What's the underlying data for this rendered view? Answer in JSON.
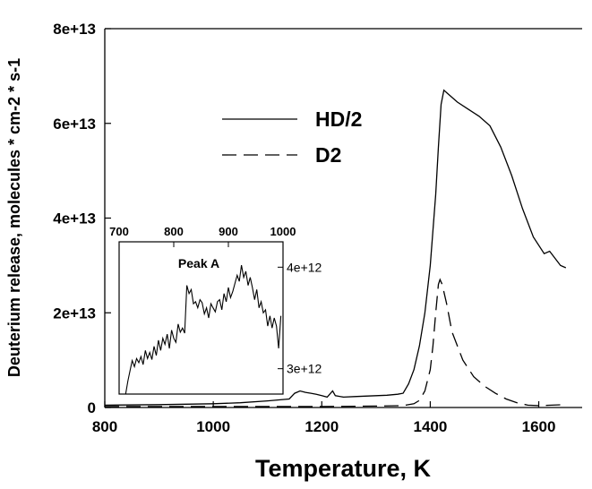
{
  "chart_data": [
    {
      "type": "line",
      "xlabel": "Temperature, K",
      "ylabel": "Deuterium release, molecules * cm-2 * s-1",
      "xlim": [
        800,
        1680
      ],
      "ylim": [
        0,
        80000000000000.0
      ],
      "x_ticks": [
        800,
        1000,
        1200,
        1400,
        1600
      ],
      "x_tick_labels": [
        "800",
        "1000",
        "1200",
        "1400",
        "1600"
      ],
      "y_ticks": [
        0,
        20000000000000.0,
        40000000000000.0,
        60000000000000.0,
        80000000000000.0
      ],
      "y_tick_labels": [
        "0",
        "2e+13",
        "4e+13",
        "6e+13",
        "8e+13"
      ],
      "grid": false,
      "legend_position": "top-center",
      "series": [
        {
          "name": "HD/2",
          "style": "solid",
          "color": "#000000",
          "points": [
            [
              800,
              500000000000.0
            ],
            [
              900,
              600000000000.0
            ],
            [
              1000,
              800000000000.0
            ],
            [
              1050,
              1000000000000.0
            ],
            [
              1100,
              1400000000000.0
            ],
            [
              1140,
              1800000000000.0
            ],
            [
              1150,
              3000000000000.0
            ],
            [
              1160,
              3500000000000.0
            ],
            [
              1170,
              3200000000000.0
            ],
            [
              1180,
              3000000000000.0
            ],
            [
              1190,
              2800000000000.0
            ],
            [
              1200,
              2500000000000.0
            ],
            [
              1210,
              2200000000000.0
            ],
            [
              1220,
              3500000000000.0
            ],
            [
              1225,
              2500000000000.0
            ],
            [
              1240,
              2200000000000.0
            ],
            [
              1260,
              2300000000000.0
            ],
            [
              1280,
              2400000000000.0
            ],
            [
              1300,
              2500000000000.0
            ],
            [
              1320,
              2600000000000.0
            ],
            [
              1340,
              2800000000000.0
            ],
            [
              1350,
              3000000000000.0
            ],
            [
              1360,
              5000000000000.0
            ],
            [
              1370,
              8000000000000.0
            ],
            [
              1380,
              13000000000000.0
            ],
            [
              1390,
              20000000000000.0
            ],
            [
              1400,
              30000000000000.0
            ],
            [
              1410,
              45000000000000.0
            ],
            [
              1415,
              55000000000000.0
            ],
            [
              1420,
              64000000000000.0
            ],
            [
              1425,
              67000000000000.0
            ],
            [
              1430,
              66500000000000.0
            ],
            [
              1450,
              64500000000000.0
            ],
            [
              1470,
              63000000000000.0
            ],
            [
              1490,
              61500000000000.0
            ],
            [
              1510,
              59500000000000.0
            ],
            [
              1530,
              55000000000000.0
            ],
            [
              1550,
              49000000000000.0
            ],
            [
              1570,
              42000000000000.0
            ],
            [
              1590,
              36000000000000.0
            ],
            [
              1610,
              32500000000000.0
            ],
            [
              1620,
              33000000000000.0
            ],
            [
              1630,
              31500000000000.0
            ],
            [
              1640,
              30000000000000.0
            ],
            [
              1650,
              29500000000000.0
            ]
          ]
        },
        {
          "name": "D2",
          "style": "dashed",
          "color": "#000000",
          "points": [
            [
              800,
              200000000000.0
            ],
            [
              1000,
              200000000000.0
            ],
            [
              1200,
              200000000000.0
            ],
            [
              1300,
              300000000000.0
            ],
            [
              1350,
              400000000000.0
            ],
            [
              1370,
              800000000000.0
            ],
            [
              1380,
              1500000000000.0
            ],
            [
              1390,
              3500000000000.0
            ],
            [
              1400,
              8000000000000.0
            ],
            [
              1405,
              13000000000000.0
            ],
            [
              1410,
              20000000000000.0
            ],
            [
              1415,
              26000000000000.0
            ],
            [
              1418,
              27000000000000.0
            ],
            [
              1422,
              26000000000000.0
            ],
            [
              1430,
              22000000000000.0
            ],
            [
              1440,
              16000000000000.0
            ],
            [
              1460,
              10000000000000.0
            ],
            [
              1480,
              6500000000000.0
            ],
            [
              1500,
              4500000000000.0
            ],
            [
              1520,
              3000000000000.0
            ],
            [
              1540,
              1800000000000.0
            ],
            [
              1560,
              1000000000000.0
            ],
            [
              1580,
              500000000000.0
            ],
            [
              1600,
              400000000000.0
            ],
            [
              1650,
              600000000000.0
            ]
          ]
        }
      ]
    },
    {
      "type": "line",
      "title": "Peak A",
      "xlim": [
        700,
        1000
      ],
      "ylim": [
        2750000000000.0,
        4250000000000.0
      ],
      "x_ticks": [
        700,
        800,
        900,
        1000
      ],
      "x_tick_labels": [
        "700",
        "800",
        "900",
        "1000"
      ],
      "x_axis_position": "top",
      "y_ticks": [
        3000000000000.0,
        4000000000000.0
      ],
      "y_tick_labels": [
        "3e+12",
        "4e+12"
      ],
      "y_axis_position": "right",
      "series": [
        {
          "style": "solid",
          "color": "#000000",
          "points": [
            [
              712,
              2750000000000.0
            ],
            [
              716,
              2880000000000.0
            ],
            [
              720,
              2980000000000.0
            ],
            [
              724,
              3080000000000.0
            ],
            [
              728,
              3020000000000.0
            ],
            [
              732,
              3100000000000.0
            ],
            [
              736,
              3060000000000.0
            ],
            [
              740,
              3120000000000.0
            ],
            [
              744,
              3040000000000.0
            ],
            [
              748,
              3180000000000.0
            ],
            [
              752,
              3100000000000.0
            ],
            [
              756,
              3160000000000.0
            ],
            [
              760,
              3090000000000.0
            ],
            [
              764,
              3220000000000.0
            ],
            [
              768,
              3130000000000.0
            ],
            [
              772,
              3280000000000.0
            ],
            [
              776,
              3180000000000.0
            ],
            [
              780,
              3300000000000.0
            ],
            [
              784,
              3240000000000.0
            ],
            [
              788,
              3340000000000.0
            ],
            [
              792,
              3200000000000.0
            ],
            [
              796,
              3380000000000.0
            ],
            [
              800,
              3300000000000.0
            ],
            [
              804,
              3260000000000.0
            ],
            [
              808,
              3440000000000.0
            ],
            [
              812,
              3360000000000.0
            ],
            [
              816,
              3400000000000.0
            ],
            [
              820,
              3350000000000.0
            ],
            [
              824,
              3820000000000.0
            ],
            [
              828,
              3740000000000.0
            ],
            [
              832,
              3780000000000.0
            ],
            [
              836,
              3640000000000.0
            ],
            [
              840,
              3660000000000.0
            ],
            [
              844,
              3600000000000.0
            ],
            [
              848,
              3680000000000.0
            ],
            [
              852,
              3650000000000.0
            ],
            [
              856,
              3540000000000.0
            ],
            [
              860,
              3600000000000.0
            ],
            [
              864,
              3500000000000.0
            ],
            [
              868,
              3640000000000.0
            ],
            [
              872,
              3600000000000.0
            ],
            [
              876,
              3560000000000.0
            ],
            [
              880,
              3660000000000.0
            ],
            [
              884,
              3680000000000.0
            ],
            [
              888,
              3580000000000.0
            ],
            [
              892,
              3740000000000.0
            ],
            [
              896,
              3660000000000.0
            ],
            [
              900,
              3800000000000.0
            ],
            [
              904,
              3700000000000.0
            ],
            [
              908,
              3760000000000.0
            ],
            [
              912,
              3840000000000.0
            ],
            [
              916,
              3920000000000.0
            ],
            [
              920,
              3860000000000.0
            ],
            [
              924,
              4020000000000.0
            ],
            [
              928,
              3900000000000.0
            ],
            [
              932,
              3960000000000.0
            ],
            [
              936,
              3820000000000.0
            ],
            [
              940,
              3900000000000.0
            ],
            [
              944,
              3800000000000.0
            ],
            [
              948,
              3680000000000.0
            ],
            [
              952,
              3780000000000.0
            ],
            [
              956,
              3600000000000.0
            ],
            [
              960,
              3660000000000.0
            ],
            [
              964,
              3550000000000.0
            ],
            [
              968,
              3580000000000.0
            ],
            [
              972,
              3420000000000.0
            ],
            [
              976,
              3520000000000.0
            ],
            [
              980,
              3400000000000.0
            ],
            [
              984,
              3500000000000.0
            ],
            [
              988,
              3420000000000.0
            ],
            [
              992,
              3200000000000.0
            ],
            [
              996,
              3520000000000.0
            ]
          ]
        }
      ]
    }
  ]
}
